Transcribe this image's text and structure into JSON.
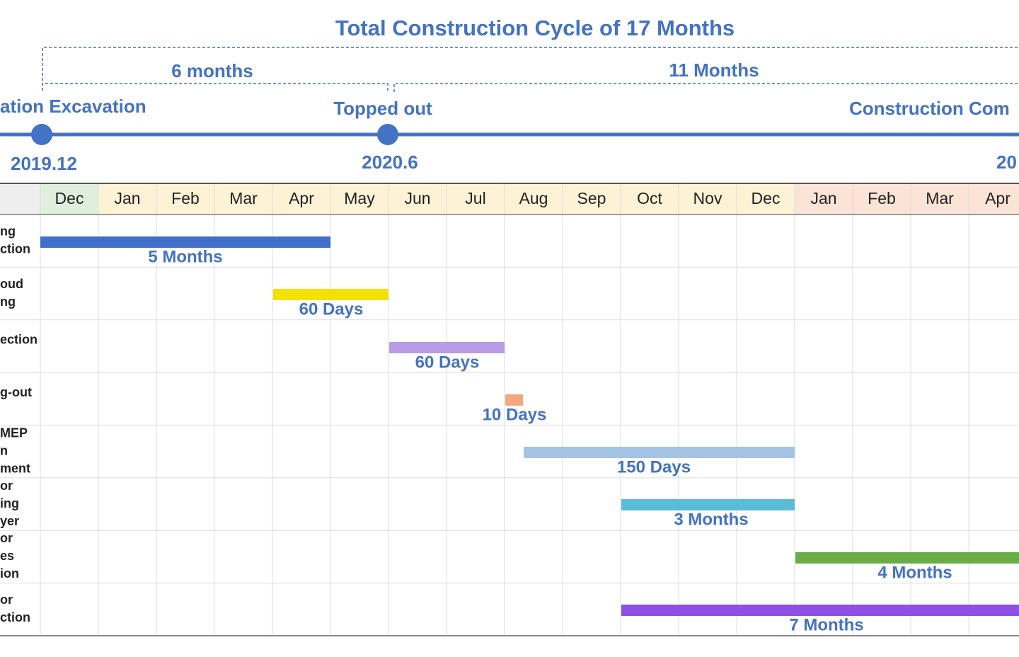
{
  "header": {
    "title": "Total Construction Cycle of 17 Months"
  },
  "phases": [
    "6 months",
    "11 Months"
  ],
  "milestones": [
    {
      "label": "ation Excavation",
      "date": "2019.12"
    },
    {
      "label": "Topped out",
      "date": "2020.6"
    },
    {
      "label": "Construction Com",
      "date": "20"
    }
  ],
  "table": {
    "months": [
      "Dec",
      "Jan",
      "Feb",
      "Mar",
      "Apr",
      "May",
      "Jun",
      "Jul",
      "Aug",
      "Sep",
      "Oct",
      "Nov",
      "Dec",
      "Jan",
      "Feb",
      "Mar",
      "Apr"
    ],
    "rows": [
      {
        "label": [
          "ng",
          "ction"
        ],
        "bar_label": "5  Months"
      },
      {
        "label": [
          "oud",
          "ng"
        ],
        "bar_label": "60 Days"
      },
      {
        "label": [
          "ection"
        ],
        "bar_label": "60 Days"
      },
      {
        "label": [
          "g-out"
        ],
        "bar_label": "10 Days"
      },
      {
        "label": [
          " MEP",
          "n",
          "ment"
        ],
        "bar_label": "150 Days"
      },
      {
        "label": [
          "or",
          "ing",
          "yer"
        ],
        "bar_label": "3 Months"
      },
      {
        "label": [
          "or",
          "es",
          "ion"
        ],
        "bar_label": "4 Months"
      },
      {
        "label": [
          "or",
          "ction"
        ],
        "bar_label": "7 Months"
      }
    ]
  }
}
